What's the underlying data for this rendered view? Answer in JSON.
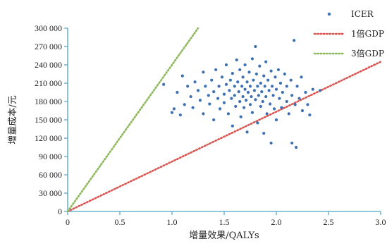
{
  "chart_data": {
    "type": "scatter",
    "xlabel": "增量效果/QALYs",
    "ylabel": "增量成本/元",
    "xlim": [
      0,
      3.0
    ],
    "ylim": [
      0,
      300000
    ],
    "x_ticks": [
      0,
      0.5,
      1.0,
      1.5,
      2.0,
      2.5,
      3.0
    ],
    "x_tick_labels": [
      "0",
      "0.5",
      "1.0",
      "1.5",
      "2.0",
      "2.5",
      "3.0"
    ],
    "y_ticks": [
      0,
      30000,
      60000,
      90000,
      120000,
      150000,
      180000,
      210000,
      240000,
      270000,
      300000
    ],
    "y_tick_labels": [
      "0",
      "30 000",
      "60 000",
      "90 000",
      "120 000",
      "150 000",
      "180 000",
      "210 000",
      "240 000",
      "270 000",
      "300 000"
    ],
    "grid": false,
    "legend_position": "top-right",
    "series": [
      {
        "name": "ICER",
        "kind": "scatter",
        "color": "#3d6fb3",
        "points": [
          [
            0.92,
            208000
          ],
          [
            1.0,
            162000
          ],
          [
            1.02,
            168000
          ],
          [
            1.05,
            195000
          ],
          [
            1.08,
            158000
          ],
          [
            1.1,
            222000
          ],
          [
            1.12,
            175000
          ],
          [
            1.15,
            205000
          ],
          [
            1.18,
            188000
          ],
          [
            1.2,
            170000
          ],
          [
            1.22,
            212000
          ],
          [
            1.25,
            198000
          ],
          [
            1.27,
            182000
          ],
          [
            1.3,
            228000
          ],
          [
            1.3,
            160000
          ],
          [
            1.32,
            205000
          ],
          [
            1.35,
            190000
          ],
          [
            1.36,
            176000
          ],
          [
            1.38,
            215000
          ],
          [
            1.4,
            196000
          ],
          [
            1.4,
            150000
          ],
          [
            1.42,
            232000
          ],
          [
            1.44,
            185000
          ],
          [
            1.45,
            205000
          ],
          [
            1.46,
            168000
          ],
          [
            1.48,
            220000
          ],
          [
            1.5,
            192000
          ],
          [
            1.5,
            178000
          ],
          [
            1.52,
            240000
          ],
          [
            1.52,
            208000
          ],
          [
            1.54,
            160000
          ],
          [
            1.55,
            198000
          ],
          [
            1.56,
            215000
          ],
          [
            1.57,
            185000
          ],
          [
            1.58,
            226000
          ],
          [
            1.58,
            140000
          ],
          [
            1.6,
            205000
          ],
          [
            1.6,
            190000
          ],
          [
            1.61,
            172000
          ],
          [
            1.62,
            248000
          ],
          [
            1.63,
            212000
          ],
          [
            1.64,
            196000
          ],
          [
            1.65,
            180000
          ],
          [
            1.65,
            232000
          ],
          [
            1.66,
            155000
          ],
          [
            1.67,
            205000
          ],
          [
            1.68,
            220000
          ],
          [
            1.68,
            188000
          ],
          [
            1.69,
            170000
          ],
          [
            1.7,
            240000
          ],
          [
            1.7,
            200000
          ],
          [
            1.71,
            182000
          ],
          [
            1.72,
            212000
          ],
          [
            1.72,
            130000
          ],
          [
            1.73,
            195000
          ],
          [
            1.74,
            228000
          ],
          [
            1.75,
            175000
          ],
          [
            1.75,
            205000
          ],
          [
            1.76,
            188000
          ],
          [
            1.77,
            250000
          ],
          [
            1.77,
            162000
          ],
          [
            1.78,
            215000
          ],
          [
            1.79,
            198000
          ],
          [
            1.8,
            183000
          ],
          [
            1.8,
            270000
          ],
          [
            1.81,
            225000
          ],
          [
            1.82,
            205000
          ],
          [
            1.82,
            145000
          ],
          [
            1.83,
            190000
          ],
          [
            1.84,
            238000
          ],
          [
            1.85,
            172000
          ],
          [
            1.85,
            210000
          ],
          [
            1.86,
            196000
          ],
          [
            1.87,
            180000
          ],
          [
            1.88,
            222000
          ],
          [
            1.88,
            128000
          ],
          [
            1.89,
            205000
          ],
          [
            1.9,
            188000
          ],
          [
            1.9,
            245000
          ],
          [
            1.91,
            160000
          ],
          [
            1.92,
            215000
          ],
          [
            1.93,
            198000
          ],
          [
            1.94,
            176000
          ],
          [
            1.95,
            230000
          ],
          [
            1.95,
            112000
          ],
          [
            1.96,
            205000
          ],
          [
            1.97,
            190000
          ],
          [
            1.98,
            168000
          ],
          [
            1.99,
            220000
          ],
          [
            2.0,
            200000
          ],
          [
            2.0,
            150000
          ],
          [
            2.02,
            232000
          ],
          [
            2.03,
            185000
          ],
          [
            2.04,
            210000
          ],
          [
            2.05,
            170000
          ],
          [
            2.06,
            195000
          ],
          [
            2.08,
            225000
          ],
          [
            2.1,
            180000
          ],
          [
            2.1,
            205000
          ],
          [
            2.12,
            160000
          ],
          [
            2.14,
            215000
          ],
          [
            2.15,
            112000
          ],
          [
            2.15,
            190000
          ],
          [
            2.17,
            280000
          ],
          [
            2.18,
            175000
          ],
          [
            2.19,
            105000
          ],
          [
            2.2,
            205000
          ],
          [
            2.22,
            185000
          ],
          [
            2.24,
            220000
          ],
          [
            2.25,
            165000
          ],
          [
            2.28,
            195000
          ],
          [
            2.3,
            175000
          ],
          [
            2.32,
            158000
          ],
          [
            2.35,
            200000
          ],
          [
            2.42,
            198000
          ]
        ]
      },
      {
        "name": "1倍GDP",
        "kind": "line",
        "color": "#d9534f",
        "dash": "dotted",
        "x": [
          0,
          3.0
        ],
        "y": [
          0,
          245000
        ]
      },
      {
        "name": "3倍GDP",
        "kind": "line",
        "color": "#8db85a",
        "dash": "dotted",
        "x": [
          0,
          1.25
        ],
        "y": [
          0,
          300000
        ]
      }
    ]
  }
}
